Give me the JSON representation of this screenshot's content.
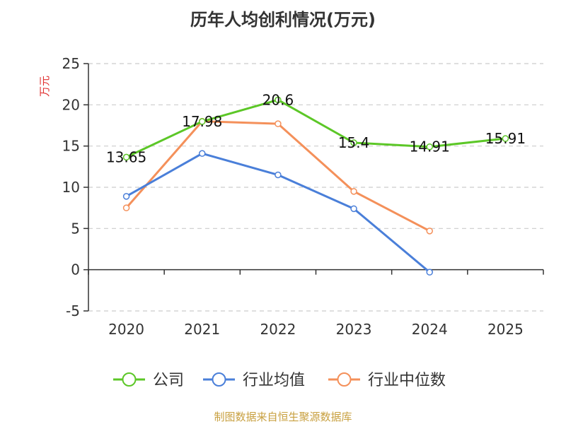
{
  "chart_data": {
    "type": "line",
    "title": "历年人均创利情况(万元)",
    "ylabel": "万元",
    "categories": [
      "2020",
      "2021",
      "2022",
      "2023",
      "2024",
      "2025"
    ],
    "ylim": [
      -5,
      25
    ],
    "yticks": [
      -5,
      0,
      5,
      10,
      15,
      20,
      25
    ],
    "grid": true,
    "legend_position": "bottom",
    "series": [
      {
        "name": "公司",
        "color": "#5cc727",
        "values": [
          13.65,
          17.98,
          20.6,
          15.4,
          14.91,
          15.91
        ],
        "labels": [
          "13.65",
          "17.98",
          "20.6",
          "15.4",
          "14.91",
          "15.91"
        ]
      },
      {
        "name": "行业均值",
        "color": "#4a7fd9",
        "values": [
          8.9,
          14.1,
          11.5,
          7.4,
          -0.3,
          null
        ]
      },
      {
        "name": "行业中位数",
        "color": "#f4905a",
        "values": [
          7.5,
          18.0,
          17.7,
          9.5,
          4.7,
          null
        ]
      }
    ]
  },
  "source_text": "制图数据来自恒生聚源数据库"
}
